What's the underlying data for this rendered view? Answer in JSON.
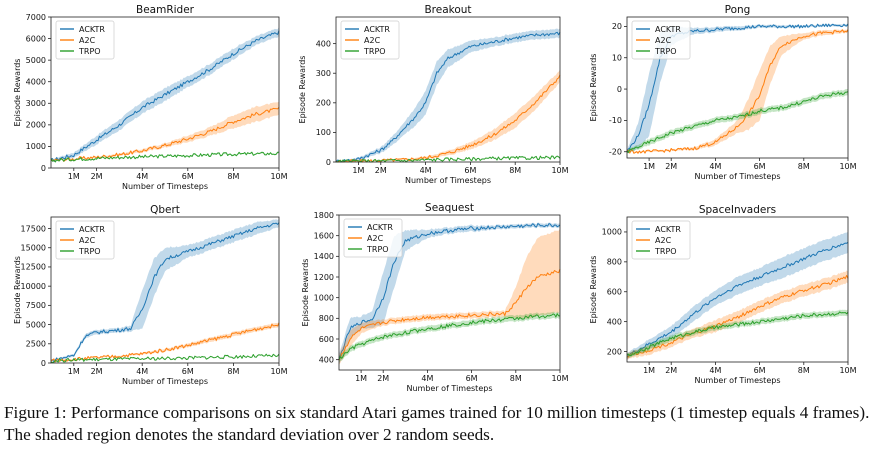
{
  "caption": {
    "label": "Figure 1:",
    "text": "Performance comparisons on six standard Atari games trained for 10 million timesteps (1 timestep equals 4 frames). The shaded region denotes the standard deviation over 2 random seeds."
  },
  "colors": {
    "ACKTR": "#1f77b4",
    "A2C": "#ff7f0e",
    "TRPO": "#2ca02c"
  },
  "chart_data": [
    {
      "type": "line",
      "title": "BeamRider",
      "xlabel": "Number of Timesteps",
      "ylabel": "Episode Rewards",
      "xlim": [
        0,
        10000000
      ],
      "ylim": [
        0,
        7000
      ],
      "xticks": [
        1000000,
        2000000,
        4000000,
        6000000,
        8000000,
        10000000
      ],
      "xtick_labels": [
        "1M",
        "2M",
        "4M",
        "6M",
        "8M",
        "10M"
      ],
      "yticks": [
        0,
        1000,
        2000,
        3000,
        4000,
        5000,
        6000,
        7000
      ],
      "ytick_labels": [
        "0",
        "1000",
        "2000",
        "3000",
        "4000",
        "5000",
        "6000",
        "7000"
      ],
      "legend": "upper-left",
      "series": [
        {
          "name": "ACKTR",
          "x": [
            0,
            1,
            2,
            3,
            4,
            5,
            6,
            7,
            8,
            9,
            10
          ],
          "values": [
            350,
            600,
            1300,
            2000,
            2800,
            3400,
            4000,
            4600,
            5300,
            5900,
            6300
          ],
          "std": [
            60,
            120,
            200,
            250,
            280,
            300,
            250,
            250,
            250,
            200,
            200
          ]
        },
        {
          "name": "A2C",
          "x": [
            0,
            1,
            2,
            3,
            4,
            5,
            6,
            7,
            8,
            9,
            10
          ],
          "values": [
            350,
            420,
            500,
            620,
            800,
            1050,
            1350,
            1700,
            2150,
            2500,
            2750
          ],
          "std": [
            20,
            30,
            40,
            60,
            80,
            100,
            150,
            200,
            300,
            350,
            300
          ]
        },
        {
          "name": "TRPO",
          "x": [
            0,
            1,
            2,
            3,
            4,
            5,
            6,
            7,
            8,
            9,
            10
          ],
          "values": [
            350,
            410,
            450,
            490,
            520,
            550,
            580,
            610,
            640,
            660,
            670
          ],
          "std": [
            10,
            15,
            15,
            20,
            20,
            20,
            25,
            25,
            25,
            25,
            25
          ]
        }
      ]
    },
    {
      "type": "line",
      "title": "Breakout",
      "xlabel": "Number of Timesteps",
      "ylabel": "Episode Rewards",
      "xlim": [
        0,
        10000000
      ],
      "ylim": [
        0,
        490
      ],
      "xticks": [
        1000000,
        2000000,
        4000000,
        6000000,
        8000000,
        10000000
      ],
      "xtick_labels": [
        "1M",
        "2M",
        "4M",
        "6M",
        "8M",
        "10M"
      ],
      "yticks": [
        0,
        100,
        200,
        300,
        400
      ],
      "ytick_labels": [
        "0",
        "100",
        "200",
        "300",
        "400"
      ],
      "legend": "upper-left",
      "series": [
        {
          "name": "ACKTR",
          "x": [
            0,
            1,
            2,
            2.5,
            3,
            3.5,
            4,
            4.5,
            5,
            6,
            7,
            8,
            9,
            10
          ],
          "values": [
            2,
            10,
            40,
            70,
            110,
            150,
            200,
            300,
            350,
            390,
            405,
            420,
            430,
            435
          ],
          "std": [
            2,
            5,
            10,
            15,
            20,
            30,
            40,
            40,
            30,
            20,
            15,
            15,
            15,
            15
          ]
        },
        {
          "name": "A2C",
          "x": [
            0,
            1,
            2,
            3,
            4,
            5,
            6,
            7,
            8,
            9,
            10
          ],
          "values": [
            2,
            3,
            5,
            8,
            14,
            30,
            55,
            90,
            140,
            210,
            290
          ],
          "std": [
            1,
            1,
            2,
            3,
            5,
            8,
            12,
            18,
            25,
            25,
            20
          ]
        },
        {
          "name": "TRPO",
          "x": [
            0,
            1,
            2,
            3,
            4,
            5,
            6,
            7,
            8,
            9,
            10
          ],
          "values": [
            2,
            3,
            4,
            5,
            7,
            9,
            10,
            12,
            13,
            14,
            15
          ],
          "std": [
            1,
            1,
            1,
            1,
            1,
            1,
            1,
            1,
            1,
            1,
            1
          ]
        }
      ]
    },
    {
      "type": "line",
      "title": "Pong",
      "xlabel": "Number of Timesteps",
      "ylabel": "Episode Rewards",
      "xlim": [
        0,
        10000000
      ],
      "ylim": [
        -22,
        23
      ],
      "xticks": [
        1000000,
        2000000,
        4000000,
        6000000,
        8000000,
        10000000
      ],
      "xtick_labels": [
        "1M",
        "2M",
        "4M",
        "6M",
        "8M",
        "10M"
      ],
      "yticks": [
        -20,
        -10,
        0,
        10,
        20
      ],
      "ytick_labels": [
        "-20",
        "-10",
        "0",
        "10",
        "20"
      ],
      "legend": "upper-left",
      "series": [
        {
          "name": "ACKTR",
          "x": [
            0,
            0.5,
            1,
            1.5,
            2,
            3,
            4,
            5,
            6,
            7,
            8,
            9,
            10
          ],
          "values": [
            -20,
            -15,
            -5,
            10,
            17,
            18.5,
            19,
            19.5,
            20,
            20,
            20,
            20.3,
            20.5
          ],
          "std": [
            0.5,
            4,
            10,
            8,
            3,
            1,
            0.8,
            0.7,
            0.5,
            0.5,
            0.4,
            0.4,
            0.4
          ]
        },
        {
          "name": "A2C",
          "x": [
            0,
            1,
            2,
            3,
            4,
            5,
            5.5,
            6,
            6.5,
            7,
            8,
            9,
            10
          ],
          "values": [
            -20,
            -20,
            -19.5,
            -19,
            -17,
            -12,
            -8,
            -2,
            8,
            14,
            17,
            18,
            18.5
          ],
          "std": [
            0.3,
            0.3,
            0.3,
            0.5,
            1,
            2,
            5,
            8,
            6,
            3,
            1,
            0.8,
            0.5
          ]
        },
        {
          "name": "TRPO",
          "x": [
            0,
            1,
            2,
            3,
            4,
            5,
            6,
            7,
            8,
            9,
            10
          ],
          "values": [
            -20,
            -17,
            -14,
            -12,
            -10,
            -9,
            -7,
            -6,
            -4,
            -2,
            -1
          ],
          "std": [
            0.5,
            1,
            1,
            1,
            1,
            1,
            1,
            1,
            1,
            1,
            1
          ]
        }
      ]
    },
    {
      "type": "line",
      "title": "Qbert",
      "xlabel": "Number of Timesteps",
      "ylabel": "Episode Rewards",
      "xlim": [
        0,
        10000000
      ],
      "ylim": [
        0,
        19000
      ],
      "xticks": [
        1000000,
        2000000,
        4000000,
        6000000,
        8000000,
        10000000
      ],
      "xtick_labels": [
        "1M",
        "2M",
        "4M",
        "6M",
        "8M",
        "10M"
      ],
      "yticks": [
        0,
        2500,
        5000,
        7500,
        10000,
        12500,
        15000,
        17500
      ],
      "ytick_labels": [
        "0",
        "2500",
        "5000",
        "7500",
        "10000",
        "12500",
        "15000",
        "17500"
      ],
      "legend": "upper-left",
      "series": [
        {
          "name": "ACKTR",
          "x": [
            0,
            1,
            1.5,
            2,
            3,
            3.5,
            4,
            4.5,
            5,
            6,
            7,
            8,
            9,
            10
          ],
          "values": [
            300,
            1000,
            3500,
            4000,
            4300,
            4500,
            7000,
            11000,
            13500,
            14500,
            15500,
            16500,
            17500,
            18200
          ],
          "std": [
            100,
            200,
            300,
            300,
            300,
            400,
            2500,
            2500,
            1500,
            800,
            800,
            800,
            800,
            500
          ]
        },
        {
          "name": "A2C",
          "x": [
            0,
            1,
            2,
            3,
            4,
            5,
            6,
            7,
            8,
            9,
            10
          ],
          "values": [
            300,
            500,
            700,
            900,
            1200,
            1700,
            2300,
            3000,
            3700,
            4400,
            5000
          ],
          "std": [
            50,
            50,
            80,
            100,
            150,
            200,
            250,
            300,
            300,
            300,
            300
          ]
        },
        {
          "name": "TRPO",
          "x": [
            0,
            1,
            2,
            3,
            4,
            5,
            6,
            7,
            8,
            9,
            10
          ],
          "values": [
            300,
            400,
            450,
            500,
            550,
            600,
            650,
            750,
            800,
            900,
            950
          ],
          "std": [
            20,
            20,
            20,
            30,
            30,
            30,
            30,
            30,
            30,
            30,
            30
          ]
        }
      ]
    },
    {
      "type": "line",
      "title": "Seaquest",
      "xlabel": "Number of Timesteps",
      "ylabel": "Episode Rewards",
      "xlim": [
        0,
        10000000
      ],
      "ylim": [
        300,
        1800
      ],
      "xticks": [
        1000000,
        2000000,
        4000000,
        6000000,
        8000000,
        10000000
      ],
      "xtick_labels": [
        "1M",
        "2M",
        "4M",
        "6M",
        "8M",
        "10M"
      ],
      "yticks": [
        400,
        600,
        800,
        1000,
        1200,
        1400,
        1600,
        1800
      ],
      "ytick_labels": [
        "400",
        "600",
        "800",
        "1000",
        "1200",
        "1400",
        "1600",
        "1800"
      ],
      "legend": "upper-left",
      "series": [
        {
          "name": "ACKTR",
          "x": [
            0,
            0.5,
            1,
            1.5,
            2,
            2.5,
            3,
            4,
            5,
            6,
            7,
            8,
            9,
            10
          ],
          "values": [
            400,
            700,
            760,
            790,
            1000,
            1350,
            1550,
            1620,
            1650,
            1670,
            1680,
            1690,
            1700,
            1700
          ],
          "std": [
            50,
            100,
            60,
            80,
            250,
            250,
            100,
            40,
            30,
            30,
            20,
            20,
            20,
            20
          ]
        },
        {
          "name": "A2C",
          "x": [
            0,
            0.5,
            1,
            2,
            3,
            4,
            5,
            6,
            7,
            7.5,
            8,
            8.5,
            9,
            10
          ],
          "values": [
            400,
            600,
            700,
            760,
            790,
            810,
            820,
            830,
            840,
            840,
            950,
            1100,
            1200,
            1260
          ],
          "std": [
            50,
            80,
            50,
            30,
            30,
            30,
            30,
            30,
            30,
            30,
            150,
            300,
            380,
            400
          ]
        },
        {
          "name": "TRPO",
          "x": [
            0,
            0.5,
            1,
            2,
            3,
            4,
            5,
            6,
            7,
            8,
            9,
            10
          ],
          "values": [
            400,
            500,
            550,
            620,
            660,
            700,
            730,
            760,
            780,
            800,
            820,
            830
          ],
          "std": [
            30,
            30,
            30,
            30,
            30,
            30,
            30,
            30,
            30,
            30,
            30,
            30
          ]
        }
      ]
    },
    {
      "type": "line",
      "title": "SpaceInvaders",
      "xlabel": "Number of Timesteps",
      "ylabel": "Episode Rewards",
      "xlim": [
        0,
        10000000
      ],
      "ylim": [
        130,
        1100
      ],
      "xticks": [
        1000000,
        2000000,
        4000000,
        6000000,
        8000000,
        10000000
      ],
      "xtick_labels": [
        "1M",
        "2M",
        "4M",
        "6M",
        "8M",
        "10M"
      ],
      "yticks": [
        200,
        400,
        600,
        800,
        1000
      ],
      "ytick_labels": [
        "200",
        "400",
        "600",
        "800",
        "1000"
      ],
      "legend": "upper-left",
      "series": [
        {
          "name": "ACKTR",
          "x": [
            0,
            1,
            2,
            3,
            4,
            5,
            6,
            7,
            8,
            9,
            10
          ],
          "values": [
            170,
            250,
            330,
            450,
            560,
            640,
            700,
            760,
            820,
            880,
            930
          ],
          "std": [
            20,
            30,
            40,
            50,
            50,
            60,
            60,
            70,
            70,
            70,
            70
          ]
        },
        {
          "name": "A2C",
          "x": [
            0,
            1,
            2,
            3,
            4,
            5,
            6,
            7,
            8,
            9,
            10
          ],
          "values": [
            170,
            210,
            260,
            320,
            370,
            430,
            500,
            560,
            610,
            650,
            700
          ],
          "std": [
            20,
            30,
            30,
            30,
            40,
            40,
            40,
            40,
            40,
            40,
            40
          ]
        },
        {
          "name": "TRPO",
          "x": [
            0,
            1,
            2,
            3,
            4,
            5,
            6,
            7,
            8,
            9,
            10
          ],
          "values": [
            170,
            230,
            290,
            330,
            360,
            380,
            400,
            420,
            440,
            450,
            460
          ],
          "std": [
            15,
            20,
            20,
            20,
            20,
            20,
            20,
            20,
            20,
            20,
            20
          ]
        }
      ]
    }
  ]
}
